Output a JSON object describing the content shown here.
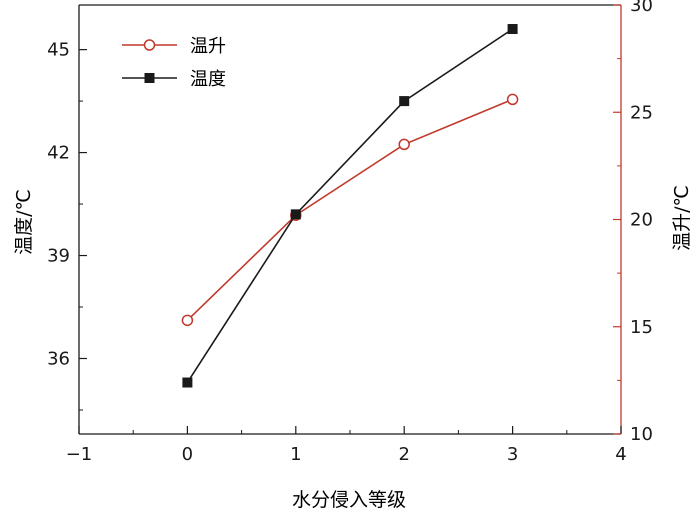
{
  "chart_data": {
    "type": "line",
    "xlabel": "水分侵入等级",
    "xlim": [
      -1,
      4
    ],
    "x_ticks": [
      "−1",
      "0",
      "1",
      "2",
      "3",
      "4"
    ],
    "y_left": {
      "label": "温度/℃",
      "lim": [
        33.8,
        46.3
      ],
      "ticks": [
        "36",
        "39",
        "42",
        "45"
      ],
      "color": "#1a1a1a"
    },
    "y_right": {
      "label": "温升/℃",
      "lim": [
        10,
        30
      ],
      "ticks": [
        "10",
        "15",
        "20",
        "25",
        "30"
      ],
      "color": "#c0392b"
    },
    "legend": {
      "position": "top-left",
      "entries": [
        "温升",
        "温度"
      ]
    },
    "series": [
      {
        "name": "温升",
        "axis": "right",
        "color": "#c0392b",
        "marker": "open-circle",
        "x": [
          0,
          1,
          2,
          3
        ],
        "y": [
          15.3,
          20.2,
          23.5,
          25.6
        ]
      },
      {
        "name": "温度",
        "axis": "left",
        "color": "#1a1a1a",
        "marker": "filled-square",
        "x": [
          0,
          1,
          2,
          3
        ],
        "y": [
          35.3,
          40.2,
          43.5,
          45.6
        ]
      }
    ]
  }
}
